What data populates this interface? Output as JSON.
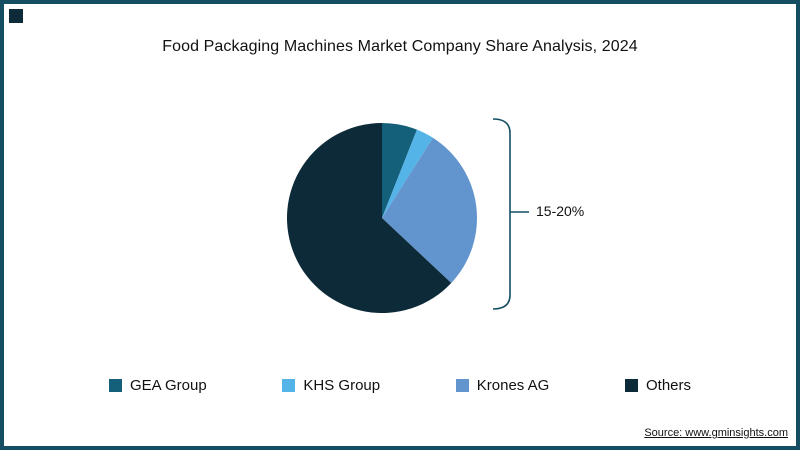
{
  "page": {
    "source_label": "Source: www.gminsights.com"
  },
  "chart_data": {
    "type": "pie",
    "title": "Food Packaging Machines Market Company Share Analysis, 2024",
    "legend_position": "bottom",
    "start_angle_deg": -90,
    "slices": [
      {
        "label": "GEA Group",
        "value": 6,
        "color": "#145f7a"
      },
      {
        "label": "KHS Group",
        "value": 3,
        "color": "#54b4e8"
      },
      {
        "label": "Krones AG",
        "value": 28,
        "color": "#6295ce"
      },
      {
        "label": "Others",
        "value": 63,
        "color": "#0d2a38"
      }
    ],
    "annotation": {
      "text": "15-20%"
    }
  },
  "colors": {
    "frame_border": "#134e63",
    "corner_square": "#0d2a38",
    "bracket": "#134e63"
  }
}
